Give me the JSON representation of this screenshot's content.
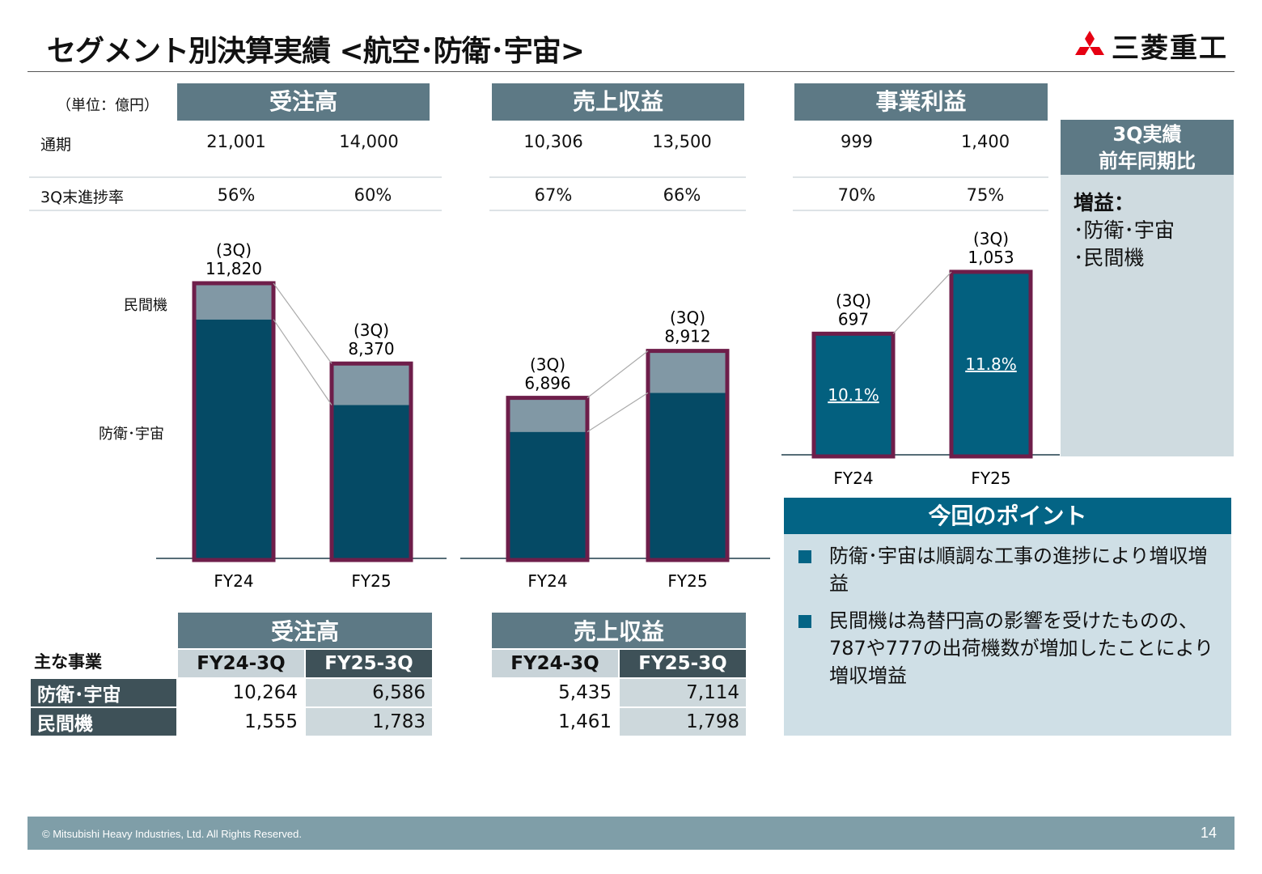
{
  "title": "セグメント別決算実績 <航空･防衛･宇宙>",
  "logo": {
    "text": "三菱重工",
    "mark_color": "#e60012"
  },
  "unit": "（単位：億円）",
  "row_labels": {
    "full_year": "通期",
    "progress": "3Q末進捗率"
  },
  "kpis": [
    {
      "header": "受注高",
      "full_year": [
        "21,001",
        "14,000"
      ],
      "progress": [
        "56%",
        "60%"
      ]
    },
    {
      "header": "売上収益",
      "full_year": [
        "10,306",
        "13,500"
      ],
      "progress": [
        "67%",
        "66%"
      ]
    },
    {
      "header": "事業利益",
      "full_year": [
        "999",
        "1,400"
      ],
      "progress": [
        "70%",
        "75%"
      ]
    }
  ],
  "chart_data": [
    {
      "type": "bar",
      "stacked": true,
      "categories": [
        "FY24",
        "FY25"
      ],
      "series": [
        {
          "name": "防衛･宇宙",
          "values": [
            10264,
            6586
          ]
        },
        {
          "name": "民間機",
          "values": [
            1555,
            1783
          ]
        }
      ],
      "totals": [
        "11,820",
        "8,370"
      ],
      "total_prefix": "(3Q)"
    },
    {
      "type": "bar",
      "stacked": true,
      "categories": [
        "FY24",
        "FY25"
      ],
      "series": [
        {
          "values": [
            5435,
            7114
          ]
        },
        {
          "values": [
            1461,
            1798
          ]
        }
      ],
      "totals": [
        "6,896",
        "8,912"
      ],
      "total_prefix": "(3Q)"
    },
    {
      "type": "bar",
      "categories": [
        "FY24",
        "FY25"
      ],
      "values": [
        697,
        1053
      ],
      "totals": [
        "697",
        "1,053"
      ],
      "total_prefix": "(3Q)",
      "margins": [
        "10.1%",
        "11.8%"
      ]
    }
  ],
  "colors": {
    "dark": "#054a65",
    "light": "#8198a5",
    "profit": "#03607f",
    "outline": "#6e1e4a"
  },
  "side_panel": {
    "header_line1": "3Q実績",
    "header_line2": "前年同期比",
    "heading": "増益：",
    "items": [
      "･防衛･宇宙",
      "･民間機"
    ]
  },
  "points": {
    "header": "今回のポイント",
    "items": [
      "防衛･宇宙は順調な工事の進捗により増収増益",
      "民間機は為替円高の影響を受けたものの、787や777の出荷機数が増加したことにより増収増益"
    ]
  },
  "tables": {
    "row_header": "主な事業",
    "columns": [
      "FY24-3Q",
      "FY25-3Q"
    ],
    "rows": [
      "防衛･宇宙",
      "民間機"
    ],
    "orders": {
      "header": "受注高",
      "values": [
        [
          "10,264",
          "6,586"
        ],
        [
          "1,555",
          "1,783"
        ]
      ]
    },
    "revenue": {
      "header": "売上収益",
      "values": [
        [
          "5,435",
          "7,114"
        ],
        [
          "1,461",
          "1,798"
        ]
      ]
    }
  },
  "footer": {
    "copyright": "© Mitsubishi Heavy Industries, Ltd.  All Rights Reserved.",
    "page": "14"
  }
}
